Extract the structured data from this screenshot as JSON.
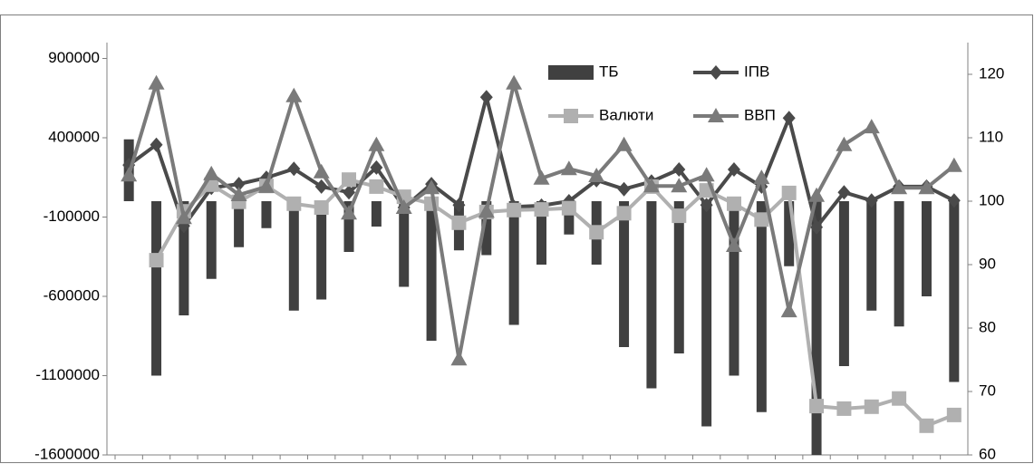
{
  "chart_data": {
    "type": "combo",
    "categories": [
      null,
      null,
      null,
      null,
      null,
      null,
      null,
      null,
      null,
      null,
      null,
      null,
      null,
      null,
      null,
      null,
      null,
      null,
      null,
      null,
      null,
      null,
      null,
      null,
      null,
      null,
      null,
      null,
      null,
      null,
      null
    ],
    "ylim": [
      -1600000,
      1000000
    ],
    "yticks": [
      -1600000,
      -1100000,
      -600000,
      -100000,
      400000,
      900000
    ],
    "y2lim": [
      60,
      125
    ],
    "y2ticks": [
      60,
      70,
      80,
      90,
      100,
      110,
      120
    ],
    "series": [
      {
        "name": "ТБ",
        "type": "bar",
        "color": "#404040",
        "values": [
          390000,
          -1100000,
          -720000,
          -490000,
          -290000,
          -170000,
          -690000,
          -620000,
          -320000,
          -160000,
          -540000,
          -880000,
          -310000,
          -340000,
          -780000,
          -400000,
          -210000,
          -400000,
          -920000,
          -1180000,
          -960000,
          -1420000,
          -1100000,
          -1330000,
          -410000,
          -1600000,
          -1040000,
          -690000,
          -790000,
          -600000,
          -1140000
        ]
      },
      {
        "name": "ІПВ",
        "type": "line",
        "axis": "y2",
        "marker": "diamond",
        "color": "#4a4a4a",
        "values": [
          105.7,
          108.9,
          96.1,
          102.1,
          102.7,
          103.7,
          105.1,
          102.3,
          101.4,
          105.3,
          99.0,
          102.7,
          99.4,
          116.4,
          99.1,
          99.3,
          100.0,
          103.3,
          101.9,
          103.1,
          105.0,
          99.4,
          105.0,
          102.3,
          113.1,
          95.9,
          101.4,
          100.1,
          102.3,
          102.3,
          100.1
        ]
      },
      {
        "name": "Валюти",
        "type": "line",
        "axis": "y2",
        "marker": "square",
        "color": "#b0b0b0",
        "values": [
          null,
          90.7,
          98.4,
          102.6,
          99.9,
          102.4,
          99.6,
          99.0,
          103.4,
          102.3,
          100.7,
          99.6,
          96.6,
          98.3,
          98.6,
          98.7,
          98.9,
          95.1,
          98.1,
          102.3,
          97.7,
          101.7,
          99.6,
          97.1,
          101.3,
          67.7,
          67.3,
          67.6,
          68.9,
          64.6,
          66.3
        ]
      },
      {
        "name": "ВВП",
        "type": "line",
        "axis": "y2",
        "marker": "triangle",
        "color": "#7a7a7a",
        "values": [
          104.1,
          118.6,
          97.4,
          104.3,
          101.0,
          102.3,
          116.6,
          104.6,
          98.1,
          108.9,
          99.0,
          102.1,
          75.1,
          98.4,
          118.6,
          103.6,
          105.1,
          104.0,
          108.9,
          102.4,
          102.4,
          104.1,
          93.0,
          103.7,
          82.7,
          100.9,
          108.9,
          111.7,
          102.1,
          102.1,
          105.6
        ]
      }
    ]
  }
}
